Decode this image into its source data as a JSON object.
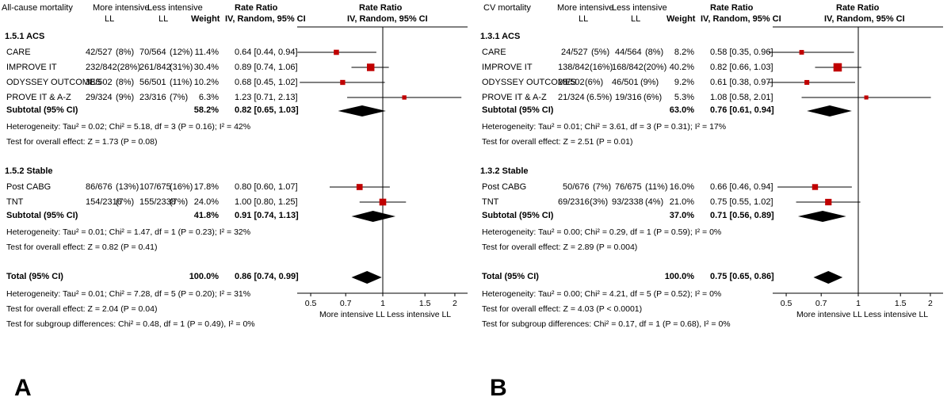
{
  "chart_data": [
    {
      "type": "forest",
      "panel_letter": "A",
      "outcome": "All-cause mortality",
      "col_group1": "More intensive",
      "col_group2": "Less intensive",
      "col_sub1": "LL",
      "col_sub2": "LL",
      "col_weight": "Weight",
      "col_effect": "Rate Ratio",
      "col_effect_sub": "IV, Random, 95% CI",
      "plot_title": "Rate Ratio",
      "plot_subtitle": "IV, Random, 95% CI",
      "x_scale": "log",
      "xlim": [
        0.4,
        3.0
      ],
      "x_ticks": [
        0.5,
        0.7,
        1,
        1.5,
        2
      ],
      "x_tick_labels": [
        "0.5",
        "0.7",
        "1",
        "1.5",
        "2"
      ],
      "favours_left": "More intensive LL",
      "favours_right": "Less intensive LL",
      "subgroups": [
        {
          "title": "1.5.1 ACS",
          "studies": [
            {
              "name": "CARE",
              "g1": "42/527",
              "g1_pct": "(8%)",
              "g2": "70/564",
              "g2_pct": "(12%)",
              "weight": "11.4%",
              "ci_text": "0.64 [0.44, 0.94]",
              "rr": 0.64,
              "lo": 0.44,
              "hi": 0.94,
              "w": 11.4
            },
            {
              "name": "IMPROVE IT",
              "g1": "232/842(28%)",
              "g1_pct": "",
              "g2": "261/842",
              "g2_pct": "(31%)",
              "weight": "30.4%",
              "ci_text": "0.89 [0.74, 1.06]",
              "rr": 0.89,
              "lo": 0.74,
              "hi": 1.06,
              "w": 30.4
            },
            {
              "name": "ODYSSEY OUTCOMES",
              "g1": "38/502",
              "g1_pct": "(8%)",
              "g2": "56/501",
              "g2_pct": "(11%)",
              "weight": "10.2%",
              "ci_text": "0.68 [0.45, 1.02]",
              "rr": 0.68,
              "lo": 0.45,
              "hi": 1.02,
              "w": 10.2
            },
            {
              "name": "PROVE IT & A-Z",
              "g1": "29/324",
              "g1_pct": "(9%)",
              "g2": "23/316",
              "g2_pct": "(7%)",
              "weight": "6.3%",
              "ci_text": "1.23 [0.71, 2.13]",
              "rr": 1.23,
              "lo": 0.71,
              "hi": 2.13,
              "w": 6.3
            }
          ],
          "subtotal_label": "Subtotal (95% CI)",
          "subtotal_weight": "58.2%",
          "subtotal_text": "0.82 [0.65, 1.03]",
          "subtotal": {
            "rr": 0.82,
            "lo": 0.65,
            "hi": 1.03
          },
          "heterogeneity": "Heterogeneity: Tau² = 0.02; Chi² = 5.18, df = 3 (P = 0.16); I² = 42%",
          "overall_effect": "Test for overall effect: Z = 1.73 (P = 0.08)"
        },
        {
          "title": "1.5.2 Stable",
          "studies": [
            {
              "name": "Post CABG",
              "g1": "86/676",
              "g1_pct": "(13%)",
              "g2": "107/675",
              "g2_pct": "(16%)",
              "weight": "17.8%",
              "ci_text": "0.80 [0.60, 1.07]",
              "rr": 0.8,
              "lo": 0.6,
              "hi": 1.07,
              "w": 17.8
            },
            {
              "name": "TNT",
              "g1": "154/2316",
              "g1_pct": "(7%)",
              "g2": "155/2338",
              "g2_pct": "(7%)",
              "weight": "24.0%",
              "ci_text": "1.00 [0.80, 1.25]",
              "rr": 1.0,
              "lo": 0.8,
              "hi": 1.25,
              "w": 24.0
            }
          ],
          "subtotal_label": "Subtotal (95% CI)",
          "subtotal_weight": "41.8%",
          "subtotal_text": "0.91 [0.74, 1.13]",
          "subtotal": {
            "rr": 0.91,
            "lo": 0.74,
            "hi": 1.13
          },
          "heterogeneity": "Heterogeneity: Tau² = 0.01; Chi² = 1.47, df = 1 (P = 0.23); I² = 32%",
          "overall_effect": "Test for overall effect: Z = 0.82 (P = 0.41)"
        }
      ],
      "total_label": "Total (95% CI)",
      "total_weight": "100.0%",
      "total_text": "0.86 [0.74, 0.99]",
      "total": {
        "rr": 0.86,
        "lo": 0.74,
        "hi": 0.99
      },
      "total_heterogeneity": "Heterogeneity: Tau² = 0.01; Chi² = 7.28, df = 5 (P = 0.20); I² = 31%",
      "total_overall_effect": "Test for overall effect: Z = 2.04 (P = 0.04)",
      "subgroup_differences": "Test for subgroup differences: Chi² = 0.48, df = 1 (P = 0.49), I² = 0%"
    },
    {
      "type": "forest",
      "panel_letter": "B",
      "outcome": "CV mortality",
      "col_group1": "More intensive",
      "col_group2": "Less intensive",
      "col_sub1": "LL",
      "col_sub2": "LL",
      "col_weight": "Weight",
      "col_effect": "Rate Ratio",
      "col_effect_sub": "IV, Random, 95% CI",
      "plot_title": "Rate Ratio",
      "plot_subtitle": "IV, Random, 95% CI",
      "x_scale": "log",
      "xlim": [
        0.4,
        3.0
      ],
      "x_ticks": [
        0.5,
        0.7,
        1,
        1.5,
        2
      ],
      "x_tick_labels": [
        "0.5",
        "0.7",
        "1",
        "1.5",
        "2"
      ],
      "favours_left": "More intensive LL",
      "favours_right": "Less intensive LL",
      "subgroups": [
        {
          "title": "1.3.1 ACS",
          "studies": [
            {
              "name": "CARE",
              "g1": "24/527",
              "g1_pct": "(5%)",
              "g2": "44/564",
              "g2_pct": "(8%)",
              "weight": "8.2%",
              "ci_text": "0.58 [0.35, 0.96]",
              "rr": 0.58,
              "lo": 0.35,
              "hi": 0.96,
              "w": 8.2
            },
            {
              "name": "IMPROVE IT",
              "g1": "138/842",
              "g1_pct": "(16%)",
              "g2": "168/842",
              "g2_pct": "(20%)",
              "weight": "40.2%",
              "ci_text": "0.82 [0.66, 1.03]",
              "rr": 0.82,
              "lo": 0.66,
              "hi": 1.03,
              "w": 40.2
            },
            {
              "name": "ODYSSEY OUTCOMES",
              "g1": "28/502",
              "g1_pct": "(6%)",
              "g2": "46/501",
              "g2_pct": "(9%)",
              "weight": "9.2%",
              "ci_text": "0.61 [0.38, 0.97]",
              "rr": 0.61,
              "lo": 0.38,
              "hi": 0.97,
              "w": 9.2
            },
            {
              "name": "PROVE IT & A-Z",
              "g1": "21/324",
              "g1_pct": "(6.5%)",
              "g2": "19/316",
              "g2_pct": "(6%)",
              "weight": "5.3%",
              "ci_text": "1.08 [0.58, 2.01]",
              "rr": 1.08,
              "lo": 0.58,
              "hi": 2.01,
              "w": 5.3
            }
          ],
          "subtotal_label": "Subtotal (95% CI)",
          "subtotal_weight": "63.0%",
          "subtotal_text": "0.76 [0.61, 0.94]",
          "subtotal": {
            "rr": 0.76,
            "lo": 0.61,
            "hi": 0.94
          },
          "heterogeneity": "Heterogeneity: Tau² = 0.01; Chi² = 3.61, df = 3 (P = 0.31); I² = 17%",
          "overall_effect": "Test for overall effect: Z = 2.51 (P = 0.01)"
        },
        {
          "title": "1.3.2 Stable",
          "studies": [
            {
              "name": "Post CABG",
              "g1": "50/676",
              "g1_pct": "(7%)",
              "g2": "76/675",
              "g2_pct": "(11%)",
              "weight": "16.0%",
              "ci_text": "0.66 [0.46, 0.94]",
              "rr": 0.66,
              "lo": 0.46,
              "hi": 0.94,
              "w": 16.0
            },
            {
              "name": "TNT",
              "g1": "69/2316",
              "g1_pct": "(3%)",
              "g2": "93/2338",
              "g2_pct": "(4%)",
              "weight": "21.0%",
              "ci_text": "0.75 [0.55, 1.02]",
              "rr": 0.75,
              "lo": 0.55,
              "hi": 1.02,
              "w": 21.0
            }
          ],
          "subtotal_label": "Subtotal (95% CI)",
          "subtotal_weight": "37.0%",
          "subtotal_text": "0.71 [0.56, 0.89]",
          "subtotal": {
            "rr": 0.71,
            "lo": 0.56,
            "hi": 0.89
          },
          "heterogeneity": "Heterogeneity: Tau² = 0.00; Chi² = 0.29, df = 1 (P = 0.59); I² = 0%",
          "overall_effect": "Test for overall effect: Z = 2.89 (P = 0.004)"
        }
      ],
      "total_label": "Total (95% CI)",
      "total_weight": "100.0%",
      "total_text": "0.75 [0.65, 0.86]",
      "total": {
        "rr": 0.75,
        "lo": 0.65,
        "hi": 0.86
      },
      "total_heterogeneity": "Heterogeneity: Tau² = 0.00; Chi² = 4.21, df = 5 (P = 0.52); I² = 0%",
      "total_overall_effect": "Test for overall effect: Z = 4.03 (P < 0.0001)",
      "subgroup_differences": "Test for subgroup differences: Chi² = 0.17, df = 1 (P = 0.68), I² = 0%"
    }
  ],
  "colors": {
    "text": "#000000",
    "study_square": "#c00000",
    "diamond": "#000000",
    "lines": "#000000"
  }
}
